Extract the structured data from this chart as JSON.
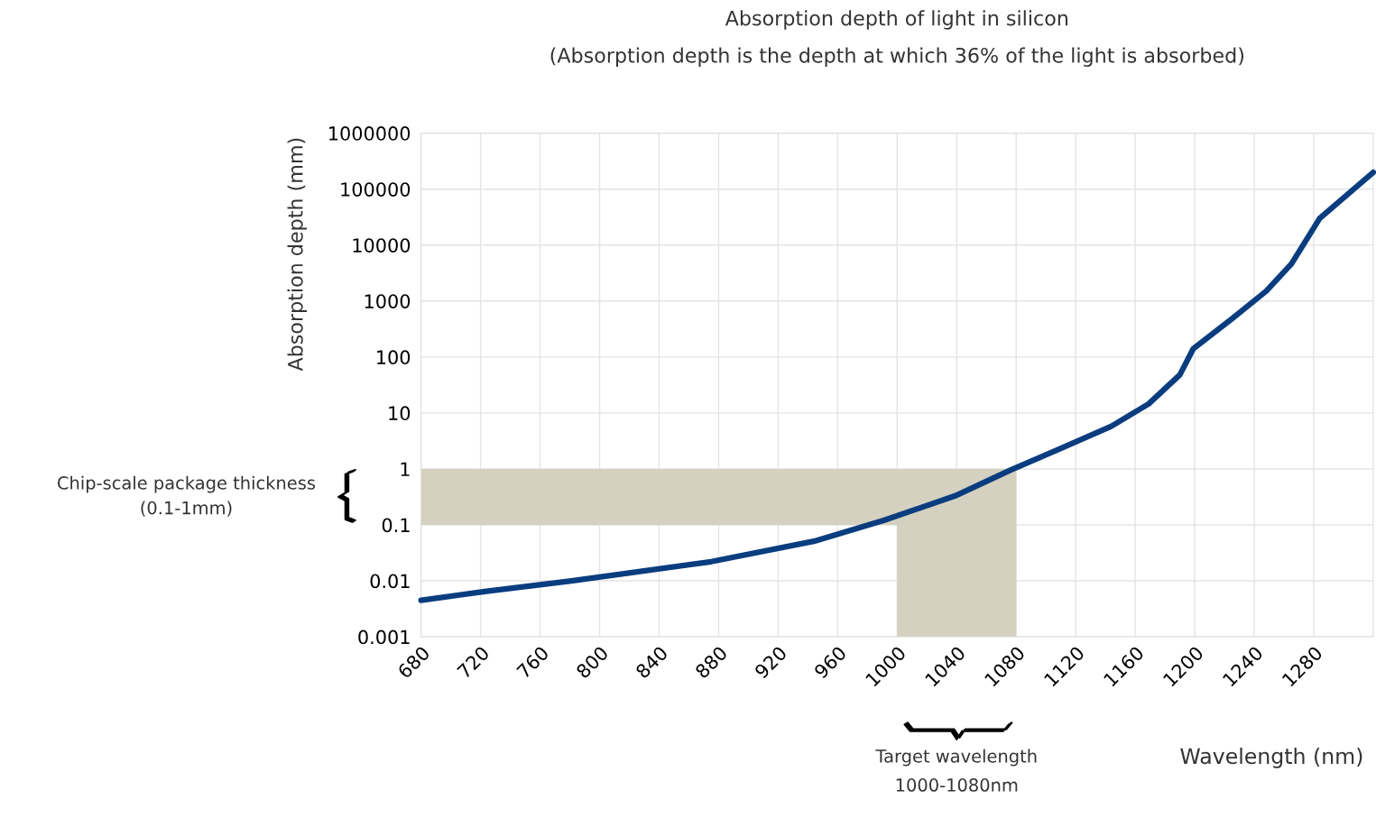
{
  "chart_data": {
    "type": "line",
    "title": "Absorption depth of light in silicon",
    "subtitle": "(Absorption depth is the depth at which 36% of the light is absorbed)",
    "xlabel": "Wavelength (nm)",
    "ylabel": "Absorption depth (mm)",
    "log": "y",
    "grid": true,
    "xlim": [
      680,
      1320
    ],
    "xticks": [
      680,
      720,
      760,
      800,
      840,
      880,
      920,
      960,
      1000,
      1040,
      1080,
      1120,
      1160,
      1200,
      1240,
      1280
    ],
    "ylim": [
      0.001,
      1000000
    ],
    "yticks": [
      0.001,
      0.01,
      0.1,
      1,
      10,
      100,
      1000,
      10000,
      100000,
      1000000
    ],
    "x": [
      680,
      724,
      781,
      875,
      944,
      991,
      1039,
      1076,
      1108,
      1144,
      1169,
      1190,
      1199,
      1225,
      1248,
      1265,
      1284,
      1320
    ],
    "series": [
      {
        "color": "#0a3d7f",
        "line_style": "solid",
        "marker": "none",
        "values": [
          0.0045,
          0.0065,
          0.01,
          0.022,
          0.051,
          0.12,
          0.33,
          0.95,
          2.2,
          5.8,
          14.5,
          48,
          140,
          480,
          1500,
          4600,
          30000,
          200000
        ]
      }
    ],
    "annotations": [
      "Chip-scale package thickness\n(0.1-1mm)",
      "Target wavelength\n1000-1080nm"
    ],
    "bands": [
      {
        "axis": "y",
        "from": 0.1,
        "to": 1,
        "color": "#d5d1c0"
      },
      {
        "axis": "x",
        "from": 1000,
        "to": 1080,
        "color": "#d5d1c0"
      }
    ]
  }
}
